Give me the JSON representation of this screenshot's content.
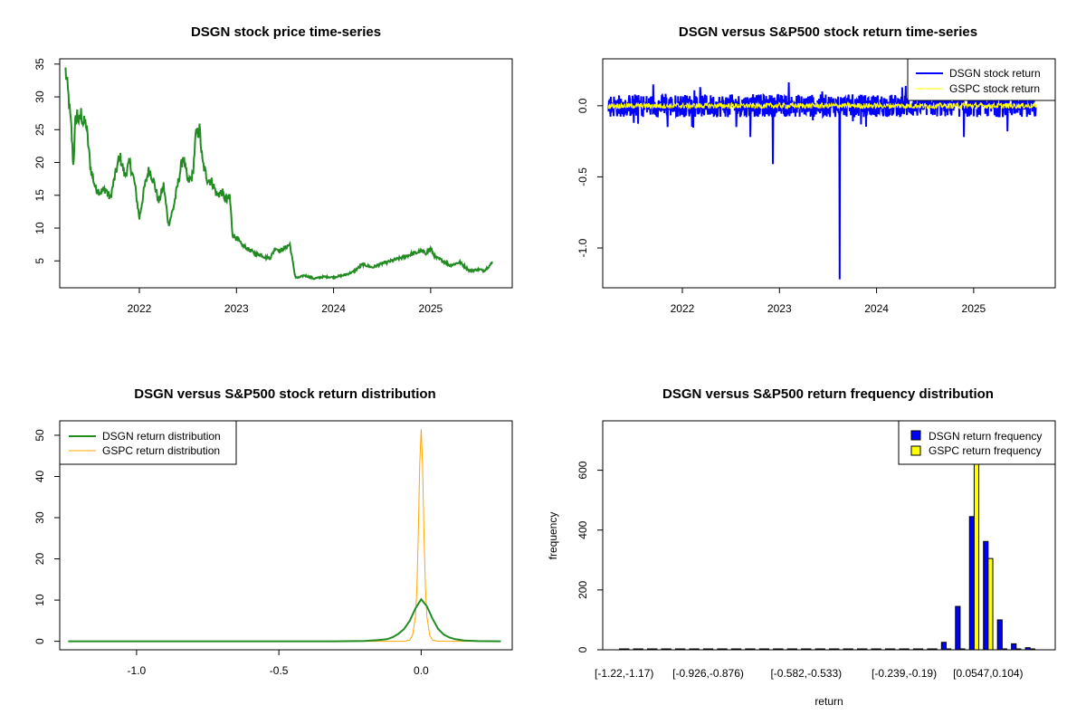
{
  "chart_data": [
    {
      "id": "price",
      "type": "line",
      "title": "DSGN stock price time-series",
      "xlabel": "",
      "ylabel": "",
      "xlim": [
        2021.18,
        2025.84
      ],
      "ylim": [
        0.9,
        35.8
      ],
      "xticks": [
        2022,
        2023,
        2024,
        2025
      ],
      "xtick_labels": [
        "2022",
        "2023",
        "2024",
        "2025"
      ],
      "yticks": [
        5,
        10,
        15,
        20,
        25,
        30,
        35
      ],
      "ytick_labels": [
        "5",
        "10",
        "15",
        "20",
        "25",
        "30",
        "35"
      ],
      "colors": {
        "line": "#228b22"
      },
      "series": [
        {
          "x": [
            2021.24,
            2021.27,
            2021.3,
            2021.32,
            2021.34,
            2021.36,
            2021.38,
            2021.4,
            2021.42,
            2021.45,
            2021.5,
            2021.55,
            2021.6,
            2021.65,
            2021.7,
            2021.75,
            2021.8,
            2021.85,
            2021.9,
            2021.95,
            2022.0,
            2022.05,
            2022.1,
            2022.15,
            2022.2,
            2022.25,
            2022.3,
            2022.35,
            2022.4,
            2022.45,
            2022.5,
            2022.55,
            2022.58,
            2022.62,
            2022.65,
            2022.7,
            2022.75,
            2022.8,
            2022.85,
            2022.9,
            2022.93,
            2022.96,
            2023.0,
            2023.05,
            2023.1,
            2023.15,
            2023.2,
            2023.25,
            2023.3,
            2023.35,
            2023.4,
            2023.45,
            2023.5,
            2023.55,
            2023.6,
            2023.61,
            2023.63,
            2023.65,
            2023.7,
            2023.8,
            2023.9,
            2024.0,
            2024.1,
            2024.2,
            2024.3,
            2024.4,
            2024.5,
            2024.6,
            2024.7,
            2024.8,
            2024.85,
            2024.9,
            2024.95,
            2025.0,
            2025.05,
            2025.1,
            2025.15,
            2025.2,
            2025.3,
            2025.4,
            2025.5,
            2025.55,
            2025.6,
            2025.64
          ],
          "y": [
            34,
            30,
            25,
            19.5,
            26,
            27.5,
            26,
            27.5,
            26,
            26,
            19,
            16,
            15.5,
            16,
            14.5,
            18,
            21,
            18,
            20,
            17,
            11.5,
            16,
            19,
            17,
            14,
            16.5,
            10.5,
            13,
            17,
            21,
            17,
            18,
            24,
            25,
            20,
            17.5,
            17,
            15,
            15.5,
            14,
            15,
            9,
            8.5,
            7.5,
            7,
            6.5,
            6,
            6,
            5.5,
            5.5,
            7,
            6.5,
            7,
            7.5,
            3,
            2.5,
            2.4,
            2.5,
            2.8,
            2.3,
            2.6,
            2.5,
            2.8,
            3.3,
            4.5,
            4,
            4.6,
            5,
            5.5,
            6,
            6.2,
            6.5,
            6.2,
            6.8,
            5.5,
            5.2,
            4.8,
            4.3,
            4.8,
            3.5,
            3.7,
            3.5,
            4.2,
            4.8
          ]
        }
      ]
    },
    {
      "id": "returns",
      "type": "line",
      "title": "DSGN versus S&P500 stock return time-series",
      "xlabel": "",
      "ylabel": "",
      "xlim": [
        2021.18,
        2025.84
      ],
      "ylim": [
        -1.28,
        0.33
      ],
      "xticks": [
        2022,
        2023,
        2024,
        2025
      ],
      "xtick_labels": [
        "2022",
        "2023",
        "2024",
        "2025"
      ],
      "yticks": [
        -1.0,
        -0.5,
        0.0
      ],
      "ytick_labels": [
        "-1.0",
        "-0.5",
        "0.0"
      ],
      "legend_position": "top-right",
      "colors": {
        "dsgn": "#0000ff",
        "gspc": "#ffff00"
      },
      "series": [
        {
          "name": "DSGN stock return",
          "x_range": [
            2021.24,
            2025.64
          ],
          "spikes": [
            [
              2021.5,
              -0.12
            ],
            [
              2021.85,
              -0.15
            ],
            [
              2022.7,
              -0.22
            ],
            [
              2022.93,
              -0.41
            ],
            [
              2023.62,
              -1.22
            ],
            [
              2024.3,
              0.14
            ],
            [
              2024.9,
              -0.22
            ],
            [
              2025.35,
              -0.18
            ],
            [
              2021.7,
              0.15
            ]
          ]
        },
        {
          "name": "GSPC stock return",
          "x_range": [
            2021.24,
            2025.64
          ]
        }
      ]
    },
    {
      "id": "density",
      "type": "line",
      "title": "DSGN versus S&P500 stock return distribution",
      "xlabel": "",
      "ylabel": "",
      "xlim": [
        -1.27,
        0.32
      ],
      "ylim": [
        -2.06,
        53.5
      ],
      "xticks": [
        -1.0,
        -0.5,
        0.0
      ],
      "xtick_labels": [
        "-1.0",
        "-0.5",
        "0.0"
      ],
      "yticks": [
        0,
        10,
        20,
        30,
        40,
        50
      ],
      "ytick_labels": [
        "0",
        "10",
        "20",
        "30",
        "40",
        "50"
      ],
      "legend_position": "top-left",
      "colors": {
        "dsgn": "#228b22",
        "gspc": "#ffa500"
      },
      "series": [
        {
          "name": "DSGN return distribution",
          "x": [
            -1.24,
            -0.3,
            -0.2,
            -0.15,
            -0.12,
            -0.1,
            -0.08,
            -0.06,
            -0.04,
            -0.02,
            0.0,
            0.02,
            0.04,
            0.06,
            0.08,
            0.1,
            0.12,
            0.15,
            0.2,
            0.28
          ],
          "y": [
            0,
            0,
            0.1,
            0.3,
            0.5,
            1.0,
            1.8,
            3.0,
            5.0,
            8.0,
            10.2,
            8.5,
            5.5,
            3.0,
            1.6,
            0.9,
            0.5,
            0.2,
            0.05,
            0
          ]
        },
        {
          "name": "GSPC return distribution",
          "x": [
            -1.24,
            -0.06,
            -0.04,
            -0.03,
            -0.02,
            -0.015,
            -0.01,
            -0.005,
            0.0,
            0.005,
            0.01,
            0.015,
            0.02,
            0.03,
            0.04,
            0.06,
            0.28
          ],
          "y": [
            0,
            0,
            0.3,
            1.5,
            6,
            13,
            26,
            43,
            51.5,
            43,
            26,
            13,
            6,
            1.5,
            0.3,
            0,
            0
          ]
        }
      ]
    },
    {
      "id": "histogram",
      "type": "bar",
      "title": "DSGN versus S&P500 return frequency distribution",
      "xlabel": "return",
      "ylabel": "frequency",
      "ylim": [
        0,
        765
      ],
      "yticks": [
        0,
        200,
        400,
        600
      ],
      "ytick_labels": [
        "0",
        "200",
        "400",
        "600"
      ],
      "legend_position": "top-right",
      "colors": {
        "dsgn": "#0000ff",
        "gspc": "#ffff00"
      },
      "tick_label_groups": [
        0,
        6,
        13,
        20,
        26
      ],
      "categories": [
        "[-1.22,-1.17)",
        "",
        "",
        "",
        "",
        "",
        "[-0.926,-0.876)",
        "",
        "",
        "",
        "",
        "",
        "",
        "[-0.582,-0.533)",
        "",
        "",
        "",
        "",
        "",
        "",
        "[-0.239,-0.19)",
        "",
        "",
        "",
        "",
        "",
        "[0.0547,0.104)",
        "",
        "",
        ""
      ],
      "series": [
        {
          "name": "DSGN return frequency",
          "values": [
            2,
            0,
            0,
            0,
            0,
            0,
            0,
            0,
            0,
            0,
            0,
            0,
            0,
            0,
            0,
            0,
            1,
            0,
            0,
            0,
            0,
            1,
            3,
            25,
            145,
            445,
            362,
            100,
            20,
            7
          ]
        },
        {
          "name": "GSPC return frequency",
          "values": [
            0,
            0,
            0,
            0,
            0,
            0,
            0,
            0,
            0,
            0,
            0,
            0,
            0,
            0,
            0,
            0,
            0,
            0,
            0,
            0,
            0,
            0,
            0,
            0,
            0,
            650,
            305,
            2,
            0,
            0
          ]
        }
      ]
    }
  ]
}
